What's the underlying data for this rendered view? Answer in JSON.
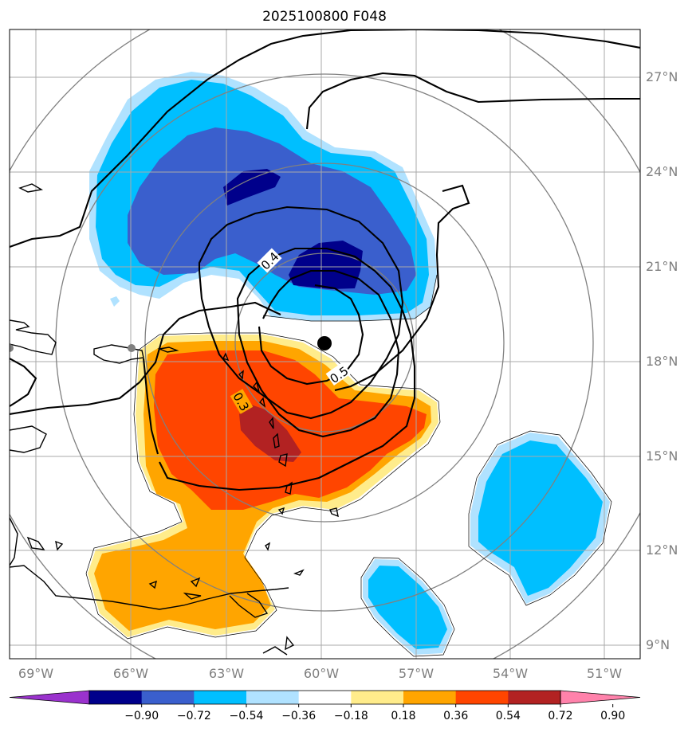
{
  "chart_data": {
    "type": "contour-map",
    "title": "2025100800 F048",
    "projection": "storm-centered polar stereographic",
    "extent": {
      "lon": [
        -70,
        -50
      ],
      "lat": [
        8.5,
        28.5
      ]
    },
    "lon_ticks": [
      -69,
      -66,
      -63,
      -60,
      -57,
      -54,
      -51
    ],
    "lat_ticks": [
      9,
      12,
      15,
      18,
      21,
      24,
      27
    ],
    "lon_tick_labels": [
      "69°W",
      "66°W",
      "63°W",
      "60°W",
      "57°W",
      "54°W",
      "51°W"
    ],
    "lat_tick_labels": [
      "9°N",
      "12°N",
      "15°N",
      "18°N",
      "21°N",
      "24°N",
      "27°N"
    ],
    "storm_center": {
      "lon": -60.0,
      "lat": 18.6
    },
    "secondary_marker": {
      "lon": -66.0,
      "lat": 18.3
    },
    "range_rings": 4,
    "filled_field": {
      "name": "shaded anomaly",
      "levels": [
        -0.9,
        -0.72,
        -0.54,
        -0.36,
        -0.18,
        0.18,
        0.36,
        0.54,
        0.72,
        0.9
      ],
      "colors": [
        "#9a32cd",
        "#00008b",
        "#3a5fcd",
        "#00bfff",
        "#b0e2ff",
        "#ffffff",
        "#ffec8b",
        "#ffa500",
        "#ff4500",
        "#b22222",
        "#ff82ab"
      ],
      "colorbar_labels": [
        "−0.90",
        "−0.72",
        "−0.54",
        "−0.36",
        "−0.18",
        "0.18",
        "0.36",
        "0.54",
        "0.72",
        "0.90"
      ]
    },
    "line_contours": {
      "labeled_values": [
        "0.3",
        "0.4",
        "0.5"
      ]
    }
  }
}
